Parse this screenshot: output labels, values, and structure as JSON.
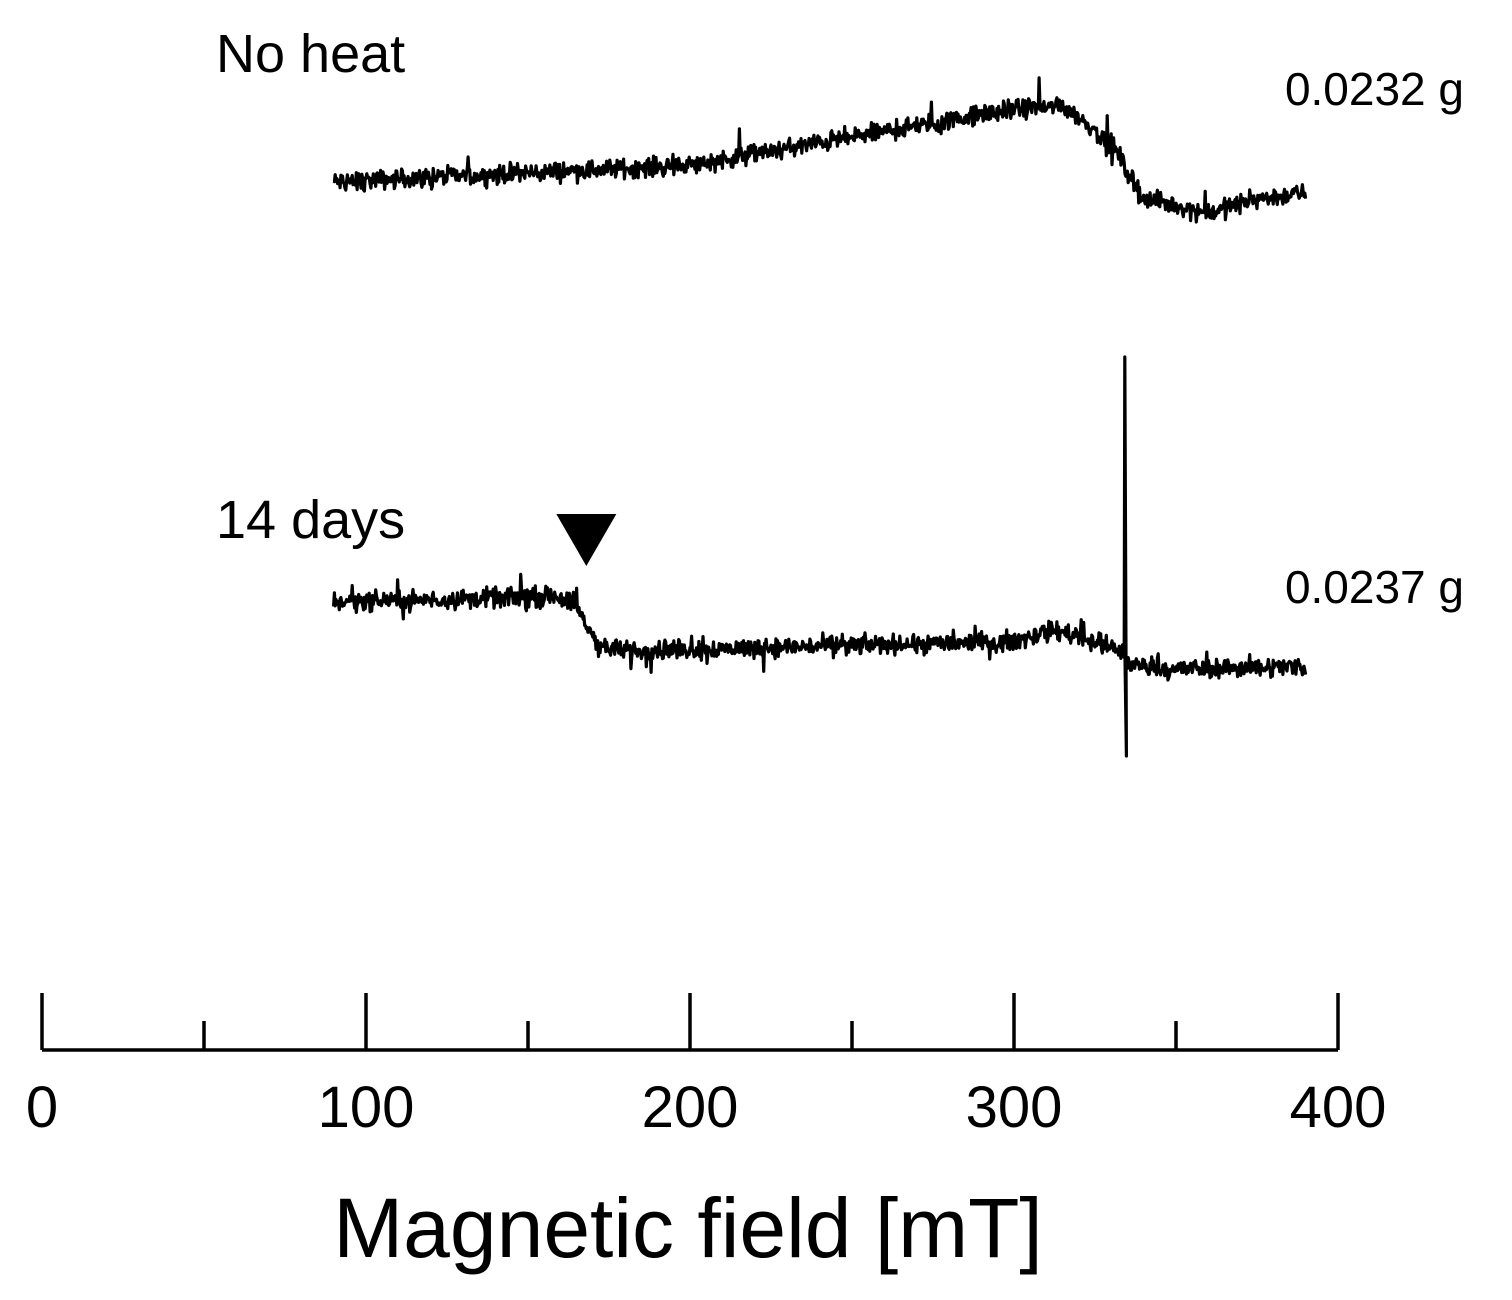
{
  "chart_data": {
    "type": "line",
    "title": "",
    "xlabel": "Magnetic field [mT]",
    "ylabel": "",
    "xlim": [
      0,
      400
    ],
    "x_ticks": [
      0,
      100,
      200,
      300,
      400
    ],
    "x_minor_ticks": [
      50,
      150,
      250,
      350
    ],
    "grid": false,
    "series": [
      {
        "label": "No heat",
        "sample_mass": "0.0232 g",
        "x_range": [
          90,
          390
        ],
        "trend_mT": [
          90,
          200,
          300,
          315,
          330,
          340,
          360,
          375,
          390
        ],
        "trend_level": [
          0,
          0.12,
          0.52,
          0.55,
          0.28,
          -0.12,
          -0.22,
          -0.12,
          -0.08
        ],
        "noise": 0.1
      },
      {
        "label": "14 days",
        "sample_mass": "0.0237 g",
        "x_range": [
          90,
          390
        ],
        "trend_mT": [
          90,
          160,
          165,
          172,
          180,
          300,
          312,
          320,
          333,
          334,
          335,
          345,
          390
        ],
        "trend_level": [
          0.1,
          0.14,
          0.06,
          -0.22,
          -0.25,
          -0.18,
          -0.1,
          -0.14,
          -0.26,
          -0.26,
          -0.34,
          -0.38,
          -0.36
        ],
        "noise": 0.1,
        "spike_mT": 334,
        "spike_up": 1.85,
        "spike_down": -1.0
      }
    ],
    "annotations": [
      {
        "type": "triangle-down-marker",
        "series": "14 days",
        "x": 168
      }
    ]
  }
}
